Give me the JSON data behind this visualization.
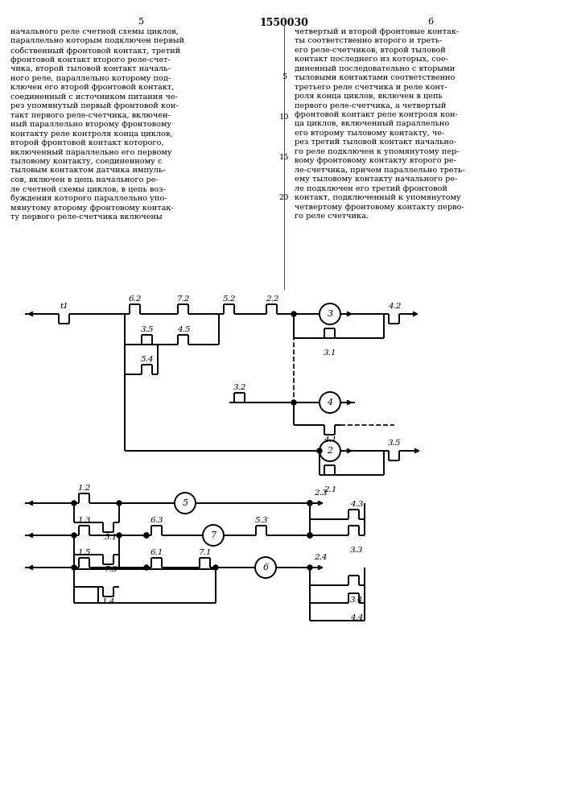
{
  "title": "1550030",
  "page_left": "5",
  "page_right": "6",
  "bg": "#ffffff",
  "lc": "#000000",
  "text_left": "начального реле счетной схемы циклов,\nпараллельно которым подключен первый\nсобственный фронтовой контакт, третий\nфронтовой контакт второго реле-счет-\nчика, второй тыловой контакт началь-\nного реле, параллельно которому под-\nключен его второй фронтовой контакт,\nсоединенный с источником питания че-\nрез упомянутый первый фронтовой кон-\nтакт первого реле-счетчика, включен-\nный параллельно второму фронтовому\nконтакту реле контроля конца циклов,\nвторой фронтовой контакт которого,\nвключенный параллельно его первому\nтыловому контакту, соединенному с\nтыловым контактом датчика импуль-\nсов, включен в цепь начального ре-\nле счетной схемы циклов, в цепь воз-\nбуждения которого параллельно упо-\nмянутому второму фронтовому контак-\nту первого реле-счетчика включены",
  "text_right": "четвертый и второй фронтовые контак-\nты соответственно второго и треть-\nего реле-счетчиков, второй тыловой\nконтакт последнего из которых, сое-\nдиненный последовательно с вторыми\nтыловыми контактами соответственно\nтретьего реле счетчика и реле конт-\nроля конца циклов, включен в цепь\nпервого реле-счетчика, а четвертый\nфронтовой контакт реле контроля кон-\nца циклов, включенный параллельно\nего второму тыловому контакту, че-\nрез третий тыловой контакт начально-\nго реле подключен к упомянутому пер-\nвому фронтовому контакту второго ре-\nле-счетчика, причем параллельно треть-\nему тыловому контакту начального ре-\nле подключен его третий фронтовой\nконтакт, подключенный к упомянутому\nчетвертому фронтовому контакту перво-\nго реле счетчика.",
  "line_nums": [
    [
      5,
      905
    ],
    [
      10,
      855
    ],
    [
      15,
      805
    ],
    [
      20,
      755
    ]
  ]
}
